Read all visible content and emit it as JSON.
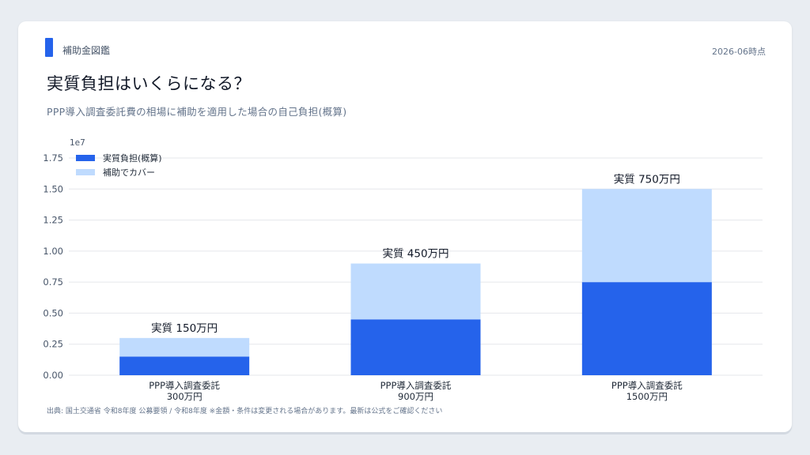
{
  "header": {
    "brand": "補助金図鑑",
    "date": "2026-06時点",
    "title": "実質負担はいくらになる？",
    "subtitle": "PPP導入調査委託費の相場に補助を適用した場合の自己負担(概算)"
  },
  "footer": {
    "source": "出典: 国土交通省 令和8年度 公募要領 / 令和8年度 ※金額・条件は変更される場合があります。最新は公式をご確認ください"
  },
  "colors": {
    "accent": "#2563eb",
    "cover": "#bfdbfe",
    "grid": "#e5e7eb"
  },
  "chart_data": {
    "type": "bar",
    "stacked": true,
    "categories": [
      "PPP導入調査委託\n300万円",
      "PPP導入調査委託\n900万円",
      "PPP導入調査委託\n1500万円"
    ],
    "series": [
      {
        "name": "実質負担(概算)",
        "color": "#2563eb",
        "values": [
          1500000,
          4500000,
          7500000
        ]
      },
      {
        "name": "補助でカバー",
        "color": "#bfdbfe",
        "values": [
          1500000,
          4500000,
          7500000
        ]
      }
    ],
    "data_labels": [
      "実質 150万円",
      "実質 450万円",
      "実質 750万円"
    ],
    "y_ticks": [
      "0.00",
      "0.25",
      "0.50",
      "0.75",
      "1.00",
      "1.25",
      "1.50",
      "1.75"
    ],
    "y_tick_values": [
      0,
      2500000,
      5000000,
      7500000,
      10000000,
      12500000,
      15000000,
      17500000
    ],
    "y_offset_label": "1e7",
    "ylim": [
      0,
      17500000
    ],
    "grid": true,
    "legend_position": "top-left"
  }
}
